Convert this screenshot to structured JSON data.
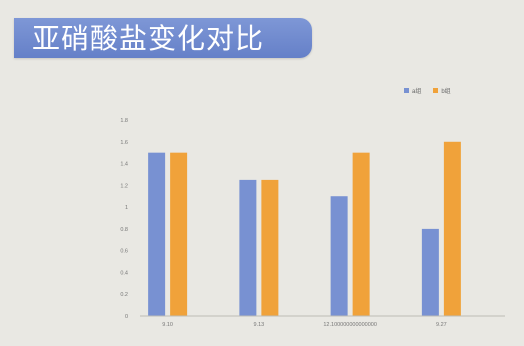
{
  "header": {
    "title": "亚硝酸盐变化对比"
  },
  "legend": [
    {
      "label": "a组",
      "color": "#7891d2"
    },
    {
      "label": "b组",
      "color": "#f0a23a"
    }
  ],
  "colors": {
    "background": "#e9e8e3",
    "banner": "#6d86cc",
    "series_a": "#7891d2",
    "series_b": "#f0a23a"
  },
  "chart_data": {
    "type": "bar",
    "title": "亚硝酸盐变化对比",
    "categories": [
      "9.10",
      "9.13",
      "12.100000000000000",
      "9.27"
    ],
    "series": [
      {
        "name": "a组",
        "values": [
          1.5,
          1.25,
          1.1,
          0.8
        ]
      },
      {
        "name": "b组",
        "values": [
          1.5,
          1.25,
          1.5,
          1.6
        ]
      }
    ],
    "yticks": [
      "0",
      "0.2",
      "0.4",
      "0.6",
      "0.8",
      "1",
      "1.2",
      "1.4",
      "1.6",
      "1.8"
    ],
    "ylim": [
      0,
      1.8
    ],
    "grid": false,
    "legend_position": "top-right"
  }
}
